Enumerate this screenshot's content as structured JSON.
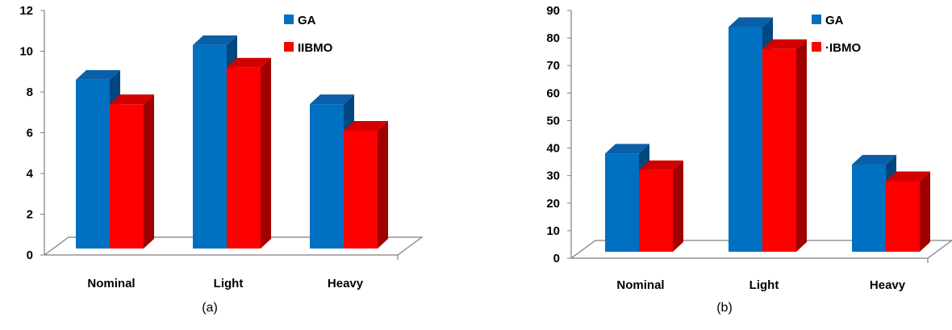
{
  "colors": {
    "ga_front": "#0070c0",
    "ga_side": "#00477f",
    "ga_top": "#0a5fa8",
    "ibmo_front": "#ff0000",
    "ibmo_side": "#a00000",
    "ibmo_top": "#d40000",
    "floor_line": "#7f7f7f",
    "axis_line": "#7f7f7f"
  },
  "chart_data": [
    {
      "type": "bar",
      "panel_label": "(a)",
      "categories": [
        "Nominal",
        "Light",
        "Heavy"
      ],
      "series": [
        {
          "name": "GA",
          "values": [
            8.6,
            10.3,
            7.4
          ]
        },
        {
          "name": "IIBMO",
          "values": [
            7.4,
            9.2,
            6.1
          ]
        }
      ],
      "ylim": [
        0,
        12
      ],
      "yticks": [
        "0",
        "2",
        "4",
        "6",
        "8",
        "10",
        "12"
      ],
      "legend_position": "top-right",
      "grid": false,
      "xlabel": "",
      "ylabel": ""
    },
    {
      "type": "bar",
      "panel_label": "(b)",
      "categories": [
        "Nominal",
        "Light",
        "Heavy"
      ],
      "series": [
        {
          "name": "GA",
          "values": [
            38,
            84,
            34
          ]
        },
        {
          "name": "·IBMO",
          "values": [
            32,
            76,
            28
          ]
        }
      ],
      "ylim": [
        0,
        90
      ],
      "yticks": [
        "0",
        "10",
        "20",
        "30",
        "40",
        "50",
        "60",
        "70",
        "80",
        "90"
      ],
      "legend_position": "top-right",
      "grid": false,
      "xlabel": "",
      "ylabel": ""
    }
  ]
}
